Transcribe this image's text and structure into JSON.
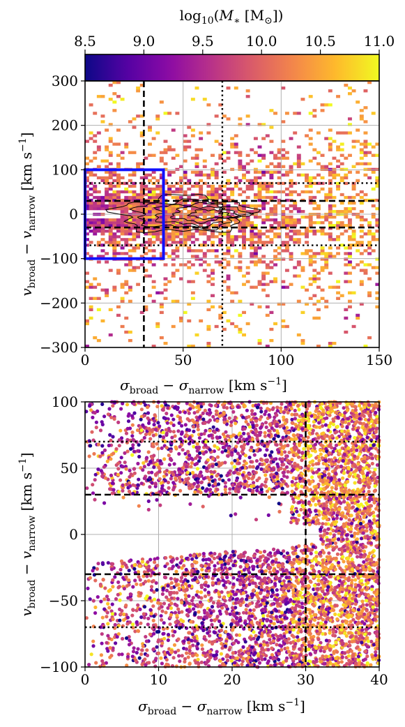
{
  "colorbar": {
    "label": "log₁₀(M∗ [M☉])",
    "range": [
      8.5,
      11.0
    ],
    "ticks": [
      "8.5",
      "9.0",
      "9.5",
      "10.0",
      "10.5",
      "11.0"
    ],
    "colormap": "plasma"
  },
  "chart_data": [
    {
      "type": "heatmap",
      "panel": "top",
      "xlabel": "σbroad − σnarrow [km s⁻¹]",
      "ylabel": "vbroad − vnarrow [km s⁻¹]",
      "xlim": [
        0,
        150
      ],
      "ylim": [
        -300,
        300
      ],
      "xticks": [
        "0",
        "50",
        "100",
        "150"
      ],
      "yticks": [
        "−300",
        "−200",
        "−100",
        "0",
        "100",
        "200",
        "300"
      ],
      "grid": true,
      "cmap_range": [
        8.5,
        11.0
      ],
      "density_contours": true,
      "selection_box": {
        "x": [
          0,
          40
        ],
        "y": [
          -100,
          100
        ],
        "color": "#1010ff"
      },
      "vlines": [
        {
          "x": 30,
          "style": "dashed"
        },
        {
          "x": 70,
          "style": "dotted"
        }
      ],
      "hlines": [
        {
          "y": 30,
          "style": "dashed"
        },
        {
          "y": -30,
          "style": "dashed"
        },
        {
          "y": 70,
          "style": "dotted"
        },
        {
          "y": -70,
          "style": "dotted"
        }
      ]
    },
    {
      "type": "scatter",
      "panel": "bottom",
      "xlabel": "σbroad − σnarrow [km s⁻¹]",
      "ylabel": "vbroad − vnarrow [km s⁻¹]",
      "xlim": [
        0,
        40
      ],
      "ylim": [
        -100,
        100
      ],
      "xticks": [
        "0",
        "10",
        "20",
        "30",
        "40"
      ],
      "yticks": [
        "−100",
        "−50",
        "0",
        "50",
        "100"
      ],
      "grid": true,
      "cmap_range": [
        8.5,
        11.0
      ],
      "vlines": [
        {
          "x": 30,
          "style": "dashed"
        }
      ],
      "hlines": [
        {
          "y": 30,
          "style": "dashed"
        },
        {
          "y": -30,
          "style": "dashed"
        },
        {
          "y": 70,
          "style": "dotted"
        },
        {
          "y": -70,
          "style": "dotted"
        }
      ]
    }
  ]
}
